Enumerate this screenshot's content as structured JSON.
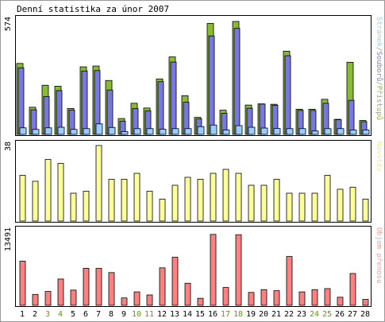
{
  "chart_data": {
    "title": "Denní statistika za únor 2007",
    "categories": [
      "1",
      "2",
      "3",
      "4",
      "5",
      "6",
      "7",
      "8",
      "9",
      "10",
      "11",
      "12",
      "13",
      "14",
      "15",
      "16",
      "17",
      "18",
      "19",
      "20",
      "21",
      "22",
      "23",
      "24",
      "25",
      "26",
      "27",
      "28"
    ],
    "weekend_days": [
      "3",
      "4",
      "10",
      "11",
      "17",
      "18",
      "24",
      "25"
    ],
    "colors": {
      "normal_label": "#000000",
      "weekend_label": "#669900",
      "bar_outline": "#000000",
      "border": "#000000",
      "bg": "#ffffff"
    },
    "panels": [
      {
        "type": "bar",
        "ymax_label": "574",
        "ylim": [
          0,
          574
        ],
        "legend": [
          {
            "text": "Stránek",
            "color": "#99ccff"
          },
          {
            "text": "/",
            "color": "#999999"
          },
          {
            "text": "Souborů",
            "color": "#7777dd"
          },
          {
            "text": "/",
            "color": "#999999"
          },
          {
            "text": "Přístupů",
            "color": "#88bb33"
          }
        ],
        "series": [
          {
            "name": "Přístupů",
            "color": "#88bb33",
            "values": [
              358,
              137,
              248,
              243,
              131,
              341,
              345,
              272,
              80,
              157,
              133,
              280,
              391,
              195,
              86,
              560,
              122,
              570,
              148,
              154,
              152,
              420,
              127,
              127,
              177,
              76,
              364,
              70
            ]
          },
          {
            "name": "Souborů",
            "color": "#7777dd",
            "values": [
              336,
              124,
              191,
              221,
              123,
              320,
              322,
              224,
              67,
              130,
              119,
              266,
              365,
              162,
              78,
              497,
              106,
              535,
              132,
              153,
              147,
              397,
              121,
              121,
              157,
              74,
              172,
              64
            ]
          },
          {
            "name": "Stránek",
            "color": "#99ccff",
            "values": [
              33,
              25,
              33,
              36,
              25,
              29,
              53,
              35,
              14,
              29,
              29,
              26,
              29,
              29,
              39,
              47,
              22,
              44,
              36,
              32,
              30,
              29,
              29,
              17,
              29,
              29,
              22,
              22
            ]
          }
        ]
      },
      {
        "type": "bar",
        "ymax_label": "38",
        "ylim": [
          0,
          38
        ],
        "legend": [
          {
            "text": "Návštěv",
            "color": "#eeee88"
          }
        ],
        "series": [
          {
            "name": "Návštěv",
            "color": "#ffff99",
            "values": [
              23,
              20,
              31,
              29,
              14,
              15,
              38,
              21,
              21,
              24,
              15,
              11,
              18,
              22,
              21,
              24,
              26,
              24,
              18,
              18,
              21,
              14,
              14,
              14,
              23,
              16,
              17,
              11
            ]
          }
        ]
      },
      {
        "type": "bar",
        "ymax_label": "13491",
        "ylim": [
          0,
          13491
        ],
        "legend": [
          {
            "text": "Objem přenosu",
            "color": "#ff9999"
          }
        ],
        "series": [
          {
            "name": "Objem přenosu",
            "color": "#ff8080",
            "values": [
              8059,
              1985,
              2527,
              4797,
              2772,
              6757,
              6746,
              5968,
              1342,
              2446,
              1888,
              6838,
              8771,
              4025,
              1278,
              12934,
              3250,
              12878,
              2349,
              2864,
              2667,
              8906,
              2446,
              2864,
              3049,
              1474,
              5806,
              1080
            ]
          }
        ]
      }
    ]
  }
}
